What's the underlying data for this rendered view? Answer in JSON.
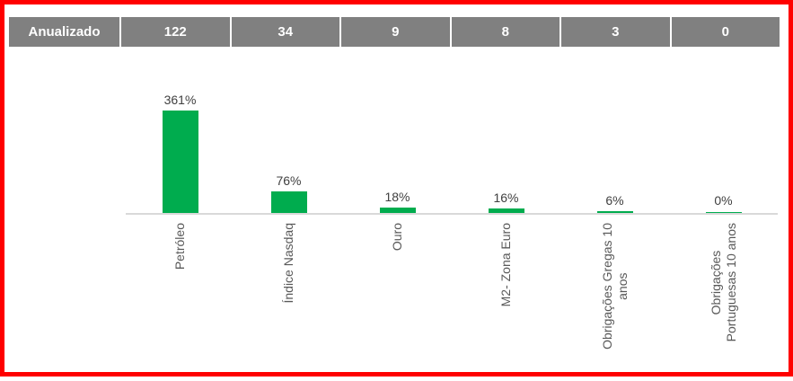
{
  "colors": {
    "frame_border": "#FF0000",
    "header_cell_bg": "#808080",
    "header_cell_text": "#FFFFFF",
    "bar_fill": "#00AC4E",
    "value_label_text": "#404040",
    "category_label_text": "#595959",
    "axis_line": "#D9D9D9"
  },
  "header_row": {
    "label": "Anualizado",
    "values": [
      "122",
      "34",
      "9",
      "8",
      "3",
      "0"
    ]
  },
  "chart_data": {
    "type": "bar",
    "title": "",
    "categories": [
      "Petróleo",
      "Índice Nasdaq",
      "Ouro",
      "M2- Zona Euro",
      "Obrigações Gregas 10 anos",
      "Obrigações Portuguesas 10 anos"
    ],
    "category_lines": [
      [
        "Petróleo"
      ],
      [
        "Índice Nasdaq"
      ],
      [
        "Ouro"
      ],
      [
        "M2- Zona Euro"
      ],
      [
        "Obrigações Gregas 10",
        "anos"
      ],
      [
        "Obrigações",
        "Portuguesas 10 anos"
      ]
    ],
    "values": [
      361,
      76,
      18,
      16,
      6,
      0
    ],
    "value_labels": [
      "361%",
      "76%",
      "18%",
      "16%",
      "6%",
      "0%"
    ],
    "unit": "%",
    "ylim": [
      0,
      400
    ],
    "grid": "off",
    "legend": "none",
    "annualized_row": {
      "label": "Anualizado",
      "values": [
        122,
        34,
        9,
        8,
        3,
        0
      ]
    }
  }
}
